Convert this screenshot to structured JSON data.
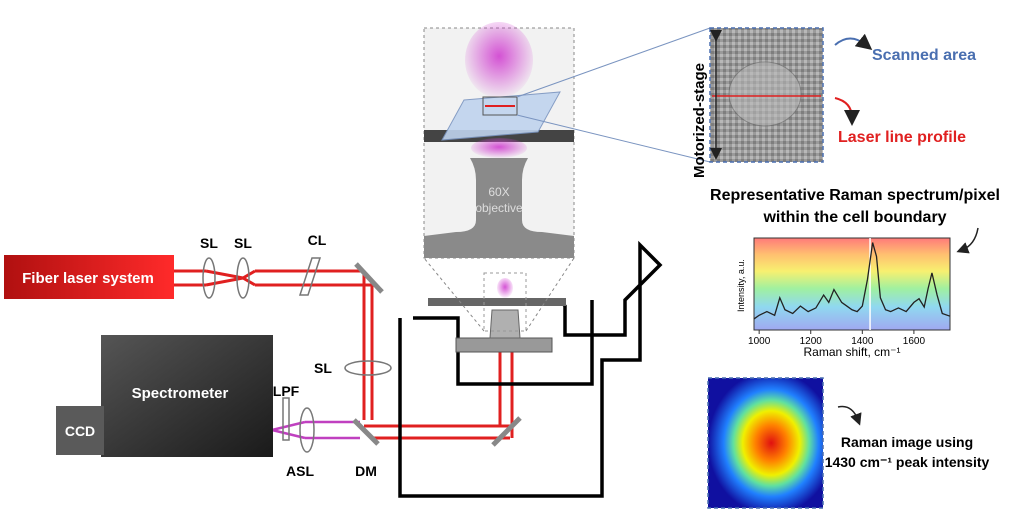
{
  "labels": {
    "fiber_laser": "Fiber laser system",
    "spectrometer": "Spectrometer",
    "ccd": "CCD",
    "sl1": "SL",
    "sl2": "SL",
    "cl": "CL",
    "sl3": "SL",
    "lpf": "LPF",
    "asl": "ASL",
    "dm": "DM",
    "objective_line1": "60X",
    "objective_line2": "objective",
    "motorized_stage": "Motorized-stage",
    "scanned_area": "Scanned area",
    "laser_line_profile": "Laser line profile",
    "spectrum_title_line1": "Representative  Raman spectrum/pixel",
    "spectrum_title_line2": "within the cell boundary",
    "raman_image_line1": "Raman image using",
    "raman_image_line2": "1430 cm⁻¹ peak intensity"
  },
  "chart_data": {
    "type": "line",
    "xlabel": "Raman shift, cm⁻¹",
    "ylabel": "Intensity, a.u.",
    "x_ticks": [
      "1000",
      "1200",
      "1400",
      "1600"
    ],
    "xlim": [
      980,
      1740
    ],
    "marker_x": 1430,
    "series": [
      {
        "x": [
          980,
          1000,
          1030,
          1060,
          1080,
          1100,
          1130,
          1160,
          1190,
          1220,
          1250,
          1270,
          1290,
          1320,
          1340,
          1360,
          1380,
          1400,
          1420,
          1440,
          1455,
          1470,
          1490,
          1510,
          1540,
          1570,
          1600,
          1620,
          1640,
          1655,
          1670,
          1690,
          1710,
          1740
        ],
        "y": [
          0.12,
          0.16,
          0.2,
          0.16,
          0.35,
          0.22,
          0.18,
          0.26,
          0.2,
          0.24,
          0.38,
          0.3,
          0.44,
          0.3,
          0.26,
          0.22,
          0.2,
          0.26,
          0.55,
          0.95,
          0.8,
          0.35,
          0.22,
          0.2,
          0.24,
          0.2,
          0.3,
          0.34,
          0.25,
          0.45,
          0.62,
          0.38,
          0.18,
          0.15
        ]
      }
    ]
  },
  "colors": {
    "laser": "#e02020",
    "emission": "#c040c0",
    "accent_blue": "#4a6fb0",
    "accent_red": "#e02020"
  }
}
